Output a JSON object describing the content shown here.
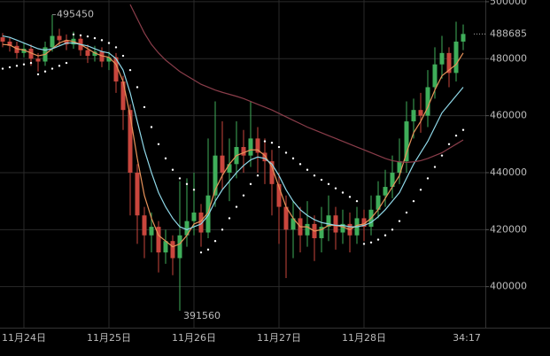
{
  "chart_data": {
    "type": "candlestick",
    "categories": [
      null,
      null,
      null,
      "11月24日",
      null,
      null,
      null,
      null,
      null,
      null,
      null,
      null,
      null,
      null,
      null,
      "11月25日",
      null,
      null,
      null,
      null,
      null,
      null,
      null,
      null,
      null,
      null,
      null,
      "11月26日",
      null,
      null,
      null,
      null,
      null,
      null,
      null,
      null,
      null,
      null,
      null,
      "11月27日",
      null,
      null,
      null,
      null,
      null,
      null,
      null,
      null,
      null,
      null,
      null,
      "11月28日",
      null,
      null,
      null,
      null,
      null,
      null,
      null,
      null,
      null,
      null,
      null,
      null,
      null,
      null
    ],
    "open": [
      487500,
      486000,
      484500,
      482000,
      483500,
      480000,
      479000,
      484000,
      488000,
      486500,
      485000,
      487000,
      483000,
      481000,
      482500,
      479000,
      480500,
      472000,
      462000,
      440000,
      425000,
      418000,
      421000,
      412000,
      416000,
      410000,
      418000,
      423000,
      426000,
      419000,
      432000,
      446000,
      440000,
      443000,
      449000,
      446000,
      452000,
      447000,
      444000,
      436000,
      428000,
      420000,
      424000,
      418000,
      422000,
      417000,
      421000,
      425000,
      419000,
      422000,
      418000,
      424000,
      421000,
      427000,
      432000,
      435000,
      440000,
      444000,
      458000,
      462000,
      460000,
      470000,
      478000,
      482000,
      475000,
      486000
    ],
    "high": [
      489000,
      487500,
      486000,
      485500,
      485000,
      482000,
      486000,
      495450,
      490500,
      488500,
      489500,
      488500,
      485000,
      484500,
      484000,
      482500,
      482000,
      474000,
      464000,
      443000,
      428000,
      426000,
      423000,
      420000,
      418000,
      437000,
      438000,
      440000,
      429000,
      452000,
      465000,
      458000,
      452000,
      458000,
      455000,
      465000,
      456000,
      452000,
      448000,
      440000,
      432000,
      430000,
      428000,
      430000,
      425000,
      428000,
      432000,
      428000,
      427000,
      426000,
      428000,
      427000,
      432000,
      437000,
      441000,
      446000,
      452000,
      465000,
      466000,
      468000,
      476000,
      484000,
      488000,
      484000,
      493000,
      492000
    ],
    "low": [
      484000,
      482500,
      480000,
      480500,
      477500,
      475500,
      477500,
      482500,
      484500,
      483000,
      483500,
      481000,
      478500,
      479000,
      477000,
      476000,
      468000,
      455000,
      425000,
      415000,
      410000,
      412000,
      405000,
      408000,
      404000,
      391560,
      414000,
      418000,
      414000,
      417000,
      428000,
      434000,
      430000,
      438000,
      440000,
      442000,
      440000,
      436000,
      425000,
      415000,
      403000,
      410000,
      412000,
      414000,
      409000,
      412000,
      416000,
      413000,
      415000,
      412000,
      415000,
      416000,
      418000,
      424000,
      428000,
      431000,
      436000,
      440000,
      452000,
      454000,
      456000,
      466000,
      473000,
      470000,
      472000,
      483000
    ],
    "close": [
      486000,
      484500,
      482000,
      483500,
      480000,
      479000,
      484000,
      488000,
      486500,
      485000,
      487000,
      483000,
      481000,
      482500,
      479000,
      480500,
      472000,
      462000,
      440000,
      425000,
      418000,
      421000,
      412000,
      416000,
      410000,
      418000,
      423000,
      426000,
      419000,
      432000,
      446000,
      440000,
      443000,
      449000,
      446000,
      452000,
      447000,
      444000,
      436000,
      428000,
      420000,
      424000,
      418000,
      422000,
      417000,
      421000,
      425000,
      419000,
      422000,
      418000,
      424000,
      421000,
      427000,
      432000,
      435000,
      440000,
      444000,
      458000,
      462000,
      460000,
      470000,
      478000,
      482000,
      475000,
      486000,
      488685
    ],
    "up_color": "#3fae5a",
    "down_color": "#c9463d",
    "lines": [
      {
        "color": "#e8935a",
        "values": [
          485000,
          484800,
          483500,
          483000,
          482000,
          481000,
          481500,
          483500,
          485500,
          486500,
          486000,
          485000,
          483500,
          482000,
          481000,
          480500,
          478000,
          472000,
          460000,
          445000,
          432000,
          424000,
          418000,
          416000,
          414000,
          415000,
          418000,
          422000,
          423000,
          426000,
          434000,
          439000,
          443000,
          446000,
          447000,
          448000,
          448000,
          446000,
          442000,
          435000,
          428000,
          424000,
          421000,
          421000,
          419500,
          420000,
          421500,
          421500,
          421000,
          420000,
          421500,
          422000,
          424000,
          427000,
          431000,
          435000,
          439000,
          447000,
          454000,
          458000,
          463000,
          469000,
          474000,
          476000,
          478000,
          482000
        ]
      },
      {
        "color": "#8fd8e8",
        "values": [
          488000,
          487500,
          486500,
          485500,
          484500,
          483500,
          483000,
          483500,
          484500,
          485500,
          485500,
          485000,
          484500,
          483500,
          482500,
          482000,
          480000,
          476000,
          468000,
          458000,
          448000,
          440000,
          433000,
          428000,
          424000,
          421000,
          420000,
          421000,
          422000,
          425000,
          430000,
          434000,
          437000,
          440000,
          442500,
          444500,
          445500,
          445000,
          443000,
          439000,
          434000,
          430000,
          427000,
          425000,
          423500,
          422500,
          422000,
          421500,
          421500,
          421000,
          421000,
          421500,
          422500,
          424500,
          427000,
          430000,
          433000,
          438000,
          443000,
          447000,
          451000,
          456000,
          461000,
          464000,
          467000,
          470000
        ]
      },
      {
        "color": "#8a3d4a",
        "values": [
          null,
          null,
          null,
          null,
          null,
          null,
          null,
          null,
          null,
          null,
          null,
          null,
          null,
          null,
          null,
          null,
          null,
          null,
          499000,
          494000,
          489000,
          485000,
          482000,
          479500,
          477500,
          475500,
          474000,
          472500,
          471000,
          470000,
          469000,
          468200,
          467500,
          466800,
          466000,
          465000,
          464000,
          463000,
          462000,
          460800,
          459600,
          458400,
          457200,
          456000,
          455000,
          454000,
          453000,
          452000,
          451000,
          450000,
          449000,
          448000,
          447000,
          446000,
          445000,
          444200,
          443800,
          443600,
          443800,
          444200,
          445000,
          446000,
          447000,
          448500,
          450000,
          451500
        ]
      }
    ],
    "sar": {
      "color": "#ffffff",
      "values": [
        476500,
        477000,
        477500,
        478000,
        478500,
        474500,
        475500,
        476500,
        477500,
        478500,
        488500,
        488200,
        487800,
        487200,
        486500,
        485500,
        484000,
        481000,
        476000,
        470000,
        463000,
        456000,
        450000,
        445000,
        441000,
        438000,
        436000,
        434000,
        412000,
        413000,
        416000,
        420000,
        424000,
        428000,
        432000,
        436000,
        439000,
        451000,
        450500,
        449000,
        447000,
        445000,
        443000,
        441000,
        439000,
        437500,
        436000,
        434500,
        433000,
        431500,
        430000,
        415000,
        415500,
        416500,
        418000,
        420000,
        423000,
        426000,
        430000,
        434000,
        438000,
        442000,
        446000,
        450000,
        453000,
        455000
      ]
    },
    "ylim": [
      385600,
      500600
    ],
    "yticks": [
      400000,
      420000,
      440000,
      460000,
      480000,
      500000
    ],
    "grid": true,
    "countdown": "34:17"
  }
}
